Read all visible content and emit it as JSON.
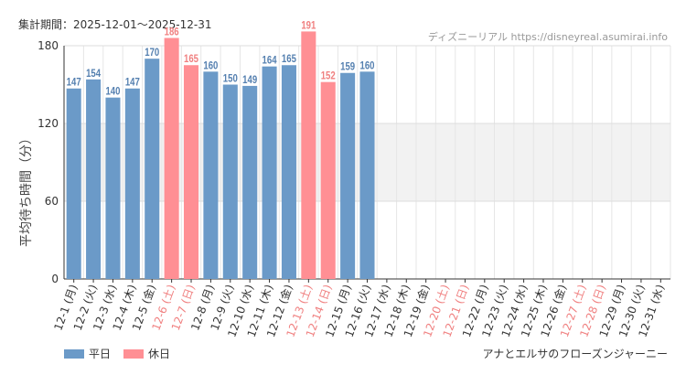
{
  "header": {
    "period": "集計期間：2025-12-01〜2025-12-31",
    "credit": "ディズニーリアル https://disneyreal.asumirai.info"
  },
  "legend": {
    "weekday_label": "平日",
    "holiday_label": "休日"
  },
  "footer": {
    "attraction": "アナとエルサのフローズンジャーニー"
  },
  "colors": {
    "weekday": "#6b9ac8",
    "holiday": "#ff8f94",
    "holiday_text": "#f08080",
    "weekday_text": "#5580b0"
  },
  "chart_data": {
    "type": "bar",
    "ylabel": "平均待ち時間（分）",
    "ylim": [
      0,
      180
    ],
    "yticks": [
      0,
      60,
      120,
      180
    ],
    "shaded_band": [
      60,
      120
    ],
    "categories": [
      "12-1 (月)",
      "12-2 (火)",
      "12-3 (水)",
      "12-4 (木)",
      "12-5 (金)",
      "12-6 (土)",
      "12-7 (日)",
      "12-8 (月)",
      "12-9 (火)",
      "12-10 (水)",
      "12-11 (木)",
      "12-12 (金)",
      "12-13 (土)",
      "12-14 (日)",
      "12-15 (月)",
      "12-16 (火)",
      "12-17 (水)",
      "12-18 (木)",
      "12-19 (金)",
      "12-20 (土)",
      "12-21 (日)",
      "12-22 (月)",
      "12-23 (火)",
      "12-24 (水)",
      "12-25 (木)",
      "12-26 (金)",
      "12-27 (土)",
      "12-28 (日)",
      "12-29 (月)",
      "12-30 (火)",
      "12-31 (水)"
    ],
    "holiday": [
      false,
      false,
      false,
      false,
      false,
      true,
      true,
      false,
      false,
      false,
      false,
      false,
      true,
      true,
      false,
      false,
      false,
      false,
      false,
      true,
      true,
      false,
      false,
      false,
      false,
      false,
      true,
      true,
      false,
      false,
      false
    ],
    "values": [
      147,
      154,
      140,
      147,
      170,
      186,
      165,
      160,
      150,
      149,
      164,
      165,
      191,
      152,
      159,
      160,
      null,
      null,
      null,
      null,
      null,
      null,
      null,
      null,
      null,
      null,
      null,
      null,
      null,
      null,
      null
    ]
  }
}
